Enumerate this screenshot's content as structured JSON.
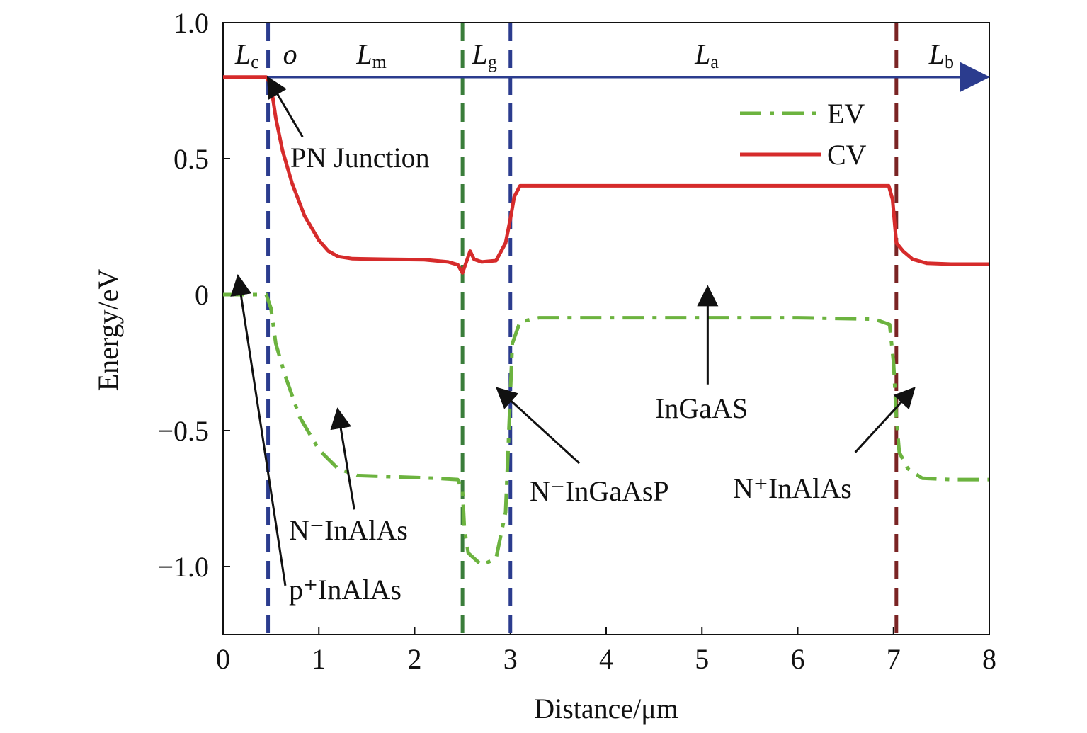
{
  "chart_data": {
    "type": "line",
    "xlabel": "Distance/μm",
    "ylabel": "Energy/eV",
    "xlim": [
      0,
      8
    ],
    "ylim": [
      -1.25,
      1.0
    ],
    "x_ticks": [
      0,
      1,
      2,
      3,
      4,
      5,
      6,
      7,
      8
    ],
    "x_tick_labels": [
      "0",
      "1",
      "2",
      "3",
      "4",
      "5",
      "6",
      "7",
      "8"
    ],
    "y_ticks": [
      1.0,
      0.5,
      0,
      -0.5,
      -1.0
    ],
    "y_tick_labels": [
      "1.0",
      "0.5",
      "0",
      "−0.5",
      "−1.0"
    ],
    "grid": false,
    "legend_position": "top-right",
    "series": [
      {
        "name": "EV",
        "style": "dash-dot",
        "color": "#6CB33F",
        "points": [
          [
            0.0,
            0.0
          ],
          [
            0.45,
            0.0
          ],
          [
            0.5,
            -0.05
          ],
          [
            0.55,
            -0.18
          ],
          [
            0.65,
            -0.3
          ],
          [
            0.8,
            -0.45
          ],
          [
            1.0,
            -0.57
          ],
          [
            1.2,
            -0.64
          ],
          [
            1.4,
            -0.665
          ],
          [
            1.8,
            -0.67
          ],
          [
            2.2,
            -0.675
          ],
          [
            2.45,
            -0.68
          ],
          [
            2.5,
            -0.72
          ],
          [
            2.52,
            -0.86
          ],
          [
            2.56,
            -0.95
          ],
          [
            2.7,
            -0.995
          ],
          [
            2.85,
            -0.97
          ],
          [
            2.95,
            -0.8
          ],
          [
            2.99,
            -0.45
          ],
          [
            3.02,
            -0.18
          ],
          [
            3.1,
            -0.1
          ],
          [
            3.3,
            -0.085
          ],
          [
            4.5,
            -0.085
          ],
          [
            6.0,
            -0.085
          ],
          [
            6.8,
            -0.09
          ],
          [
            6.96,
            -0.11
          ],
          [
            7.0,
            -0.25
          ],
          [
            7.03,
            -0.45
          ],
          [
            7.06,
            -0.58
          ],
          [
            7.15,
            -0.64
          ],
          [
            7.3,
            -0.675
          ],
          [
            7.6,
            -0.68
          ],
          [
            8.0,
            -0.68
          ]
        ]
      },
      {
        "name": "CV",
        "style": "solid",
        "color": "#D62B2B",
        "points": [
          [
            0.0,
            0.8
          ],
          [
            0.45,
            0.8
          ],
          [
            0.5,
            0.77
          ],
          [
            0.55,
            0.65
          ],
          [
            0.62,
            0.53
          ],
          [
            0.72,
            0.41
          ],
          [
            0.85,
            0.29
          ],
          [
            1.0,
            0.2
          ],
          [
            1.1,
            0.16
          ],
          [
            1.2,
            0.14
          ],
          [
            1.35,
            0.132
          ],
          [
            1.7,
            0.13
          ],
          [
            2.1,
            0.128
          ],
          [
            2.35,
            0.12
          ],
          [
            2.45,
            0.11
          ],
          [
            2.5,
            0.08
          ],
          [
            2.55,
            0.13
          ],
          [
            2.58,
            0.16
          ],
          [
            2.62,
            0.13
          ],
          [
            2.7,
            0.12
          ],
          [
            2.85,
            0.125
          ],
          [
            2.95,
            0.19
          ],
          [
            3.0,
            0.28
          ],
          [
            3.04,
            0.36
          ],
          [
            3.1,
            0.4
          ],
          [
            4.5,
            0.4
          ],
          [
            6.95,
            0.4
          ],
          [
            6.99,
            0.35
          ],
          [
            7.03,
            0.19
          ],
          [
            7.1,
            0.16
          ],
          [
            7.2,
            0.13
          ],
          [
            7.35,
            0.115
          ],
          [
            7.6,
            0.112
          ],
          [
            8.0,
            0.112
          ]
        ]
      }
    ],
    "divider_lines": [
      {
        "x": 0.47,
        "color": "#2B3C8E"
      },
      {
        "x": 2.5,
        "color": "#3A7D3A"
      },
      {
        "x": 3.0,
        "color": "#2B3C8E"
      },
      {
        "x": 7.03,
        "color": "#7A2424"
      }
    ],
    "reference_arrow": {
      "y": 0.8,
      "x_start": 0.0,
      "x_end": 8.0,
      "color": "#2B3C8E"
    },
    "region_labels": [
      {
        "main": "L",
        "sub": "c",
        "x": 0.25
      },
      {
        "main": "o",
        "sub": "",
        "x": 0.7
      },
      {
        "main": "L",
        "sub": "m",
        "x": 1.55
      },
      {
        "main": "L",
        "sub": "g",
        "x": 2.73
      },
      {
        "main": "L",
        "sub": "a",
        "x": 5.05
      },
      {
        "main": "L",
        "sub": "b",
        "x": 7.5
      }
    ],
    "annotations": [
      {
        "text": "PN Junction",
        "tip": [
          0.48,
          0.79
        ],
        "tail": [
          0.83,
          0.58
        ]
      },
      {
        "text": "p⁺InAlAs",
        "tip": [
          0.16,
          0.06
        ],
        "tail": [
          0.65,
          -1.07
        ]
      },
      {
        "text": "N⁻InAlAs",
        "tip": [
          1.2,
          -0.43
        ],
        "tail": [
          1.37,
          -0.79
        ]
      },
      {
        "text": "N⁻InGaAsP",
        "tip": [
          2.88,
          -0.35
        ],
        "tail": [
          3.72,
          -0.62
        ]
      },
      {
        "text": "InGaAS",
        "tip": [
          5.06,
          0.02
        ],
        "tail": [
          5.06,
          -0.33
        ]
      },
      {
        "text": "N⁺InAlAs",
        "tip": [
          7.2,
          -0.35
        ],
        "tail": [
          6.6,
          -0.58
        ]
      }
    ]
  }
}
